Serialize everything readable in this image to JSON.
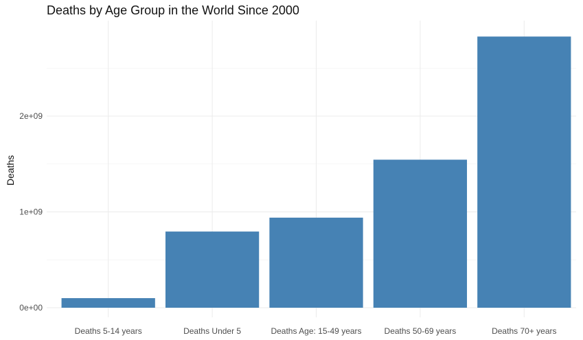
{
  "chart_data": {
    "type": "bar",
    "title": "Deaths by Age Group in the World Since 2000",
    "xlabel": "",
    "ylabel": "Deaths",
    "categories": [
      "Deaths 5-14 years",
      "Deaths Under 5",
      "Deaths Age: 15-49 years",
      "Deaths 50-69 years",
      "Deaths 70+ years"
    ],
    "values": [
      100000000,
      795000000,
      940000000,
      1545000000,
      2830000000
    ],
    "ylim": [
      0,
      2950000000
    ],
    "yticks": [
      {
        "value": 0,
        "label": "0e+00"
      },
      {
        "value": 1000000000,
        "label": "1e+09"
      },
      {
        "value": 2000000000,
        "label": "2e+09"
      }
    ],
    "bar_color": "#4682B4",
    "grid": true,
    "legend": "none"
  }
}
